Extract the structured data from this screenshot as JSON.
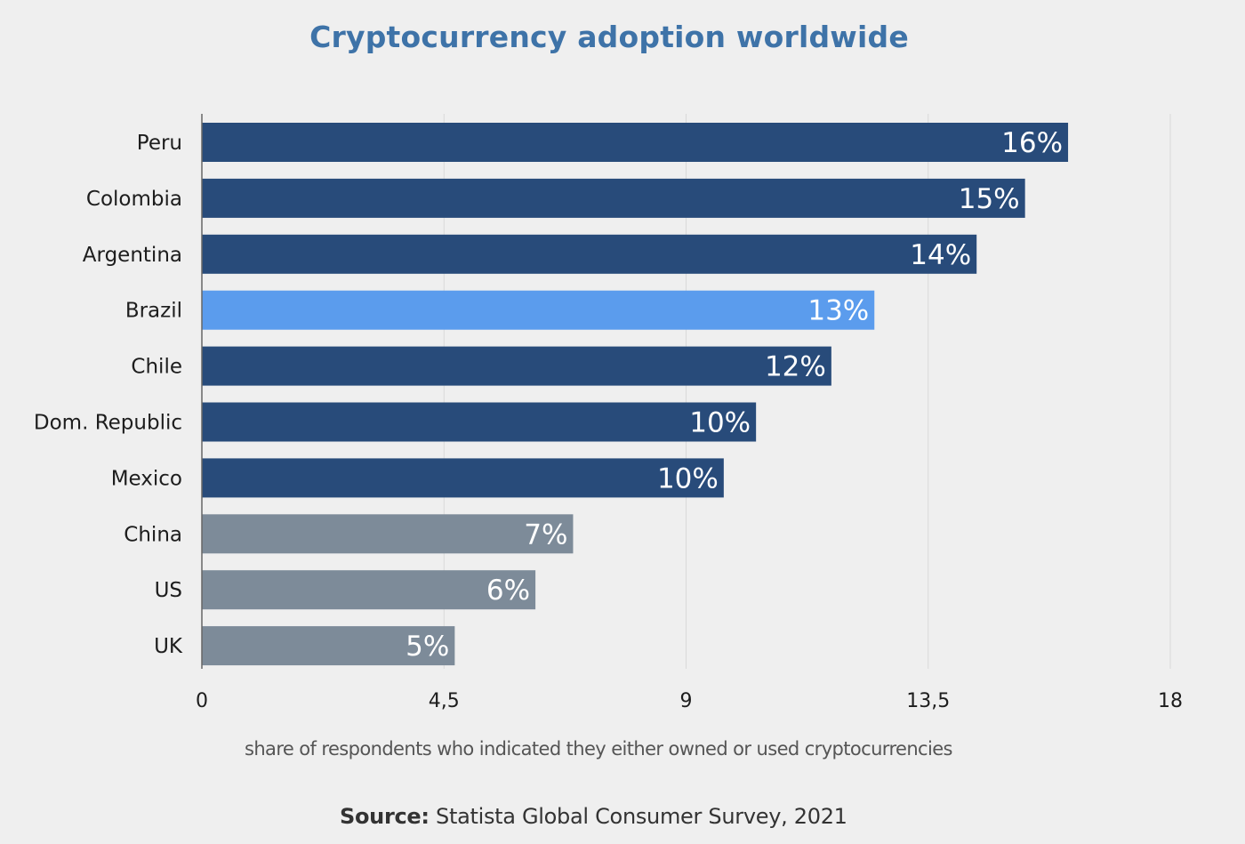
{
  "chart_data": {
    "type": "bar",
    "orientation": "horizontal",
    "title": "Cryptocurrency adoption worldwide",
    "xlabel": "share of respondents who indicated they either owned or used cryptocurrencies",
    "ylabel": "",
    "xlim": [
      0,
      18
    ],
    "xticks": [
      0,
      4.5,
      9,
      13.5,
      18
    ],
    "xtick_labels": [
      "0",
      "4,5",
      "9",
      "13,5",
      "18"
    ],
    "grid": "vertical",
    "categories": [
      "Peru",
      "Colombia",
      "Argentina",
      "Brazil",
      "Chile",
      "Dom. Republic",
      "Mexico",
      "China",
      "US",
      "UK"
    ],
    "values": [
      16.1,
      15.3,
      14.4,
      12.5,
      11.7,
      10.3,
      9.7,
      6.9,
      6.2,
      4.7
    ],
    "data_labels": [
      "16%",
      "15%",
      "14%",
      "13%",
      "12%",
      "10%",
      "10%",
      "7%",
      "6%",
      "5%"
    ],
    "bar_colors": [
      "#284b7a",
      "#284b7a",
      "#284b7a",
      "#5b9ced",
      "#284b7a",
      "#284b7a",
      "#284b7a",
      "#7d8b99",
      "#7d8b99",
      "#7d8b99"
    ],
    "source_label": "Source:",
    "source_text": " Statista Global Consumer Survey, 2021"
  },
  "colors": {
    "title": "#3e73a8",
    "background": "#efefef",
    "gridline": "#d9d9d9",
    "axis": "#666666"
  }
}
